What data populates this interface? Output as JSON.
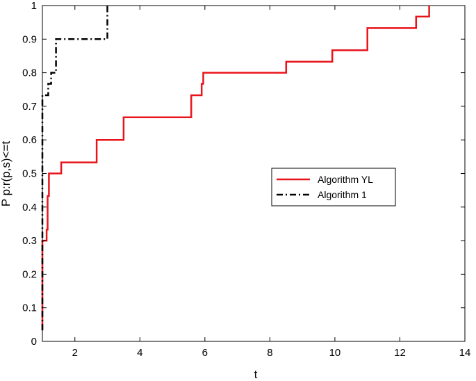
{
  "chart_data": {
    "type": "line",
    "xlabel": "t",
    "ylabel": "P p:r(p,s)<=t",
    "xlim": [
      1,
      14
    ],
    "ylim": [
      0,
      1
    ],
    "xticks": [
      2,
      4,
      6,
      8,
      10,
      12,
      14
    ],
    "xtick_labels": [
      "2",
      "4",
      "6",
      "8",
      "10",
      "12",
      "14"
    ],
    "yticks": [
      0,
      0.1,
      0.2,
      0.3,
      0.4,
      0.5,
      0.6,
      0.7,
      0.8,
      0.9,
      1
    ],
    "ytick_labels": [
      "0",
      "0.1",
      "0.2",
      "0.3",
      "0.4",
      "0.5",
      "0.6",
      "0.7",
      "0.8",
      "0.9",
      "1"
    ],
    "grid": false,
    "legend_position": "right-middle",
    "series": [
      {
        "name": "Algorithm YL",
        "color": "#e8141b",
        "style": "solid",
        "step": true,
        "points": [
          [
            1.0,
            0.033
          ],
          [
            1.0,
            0.3
          ],
          [
            1.13,
            0.3
          ],
          [
            1.13,
            0.333
          ],
          [
            1.16,
            0.333
          ],
          [
            1.16,
            0.433
          ],
          [
            1.2,
            0.433
          ],
          [
            1.2,
            0.5
          ],
          [
            1.58,
            0.5
          ],
          [
            1.58,
            0.533
          ],
          [
            2.67,
            0.533
          ],
          [
            2.67,
            0.6
          ],
          [
            3.5,
            0.6
          ],
          [
            3.5,
            0.667
          ],
          [
            5.58,
            0.667
          ],
          [
            5.58,
            0.733
          ],
          [
            5.9,
            0.733
          ],
          [
            5.9,
            0.767
          ],
          [
            5.95,
            0.767
          ],
          [
            5.95,
            0.8
          ],
          [
            8.5,
            0.8
          ],
          [
            8.5,
            0.833
          ],
          [
            9.92,
            0.833
          ],
          [
            9.92,
            0.867
          ],
          [
            11.0,
            0.867
          ],
          [
            11.0,
            0.933
          ],
          [
            12.5,
            0.933
          ],
          [
            12.5,
            0.967
          ],
          [
            12.9,
            0.967
          ],
          [
            12.9,
            1.0
          ]
        ]
      },
      {
        "name": "Algorithm 1",
        "color": "#000000",
        "style": "dashdot",
        "step": true,
        "points": [
          [
            1.0,
            0.033
          ],
          [
            1.0,
            0.733
          ],
          [
            1.18,
            0.733
          ],
          [
            1.18,
            0.767
          ],
          [
            1.27,
            0.767
          ],
          [
            1.27,
            0.8
          ],
          [
            1.42,
            0.8
          ],
          [
            1.42,
            0.9
          ],
          [
            3.0,
            0.9
          ],
          [
            3.0,
            1.0
          ]
        ]
      }
    ]
  }
}
